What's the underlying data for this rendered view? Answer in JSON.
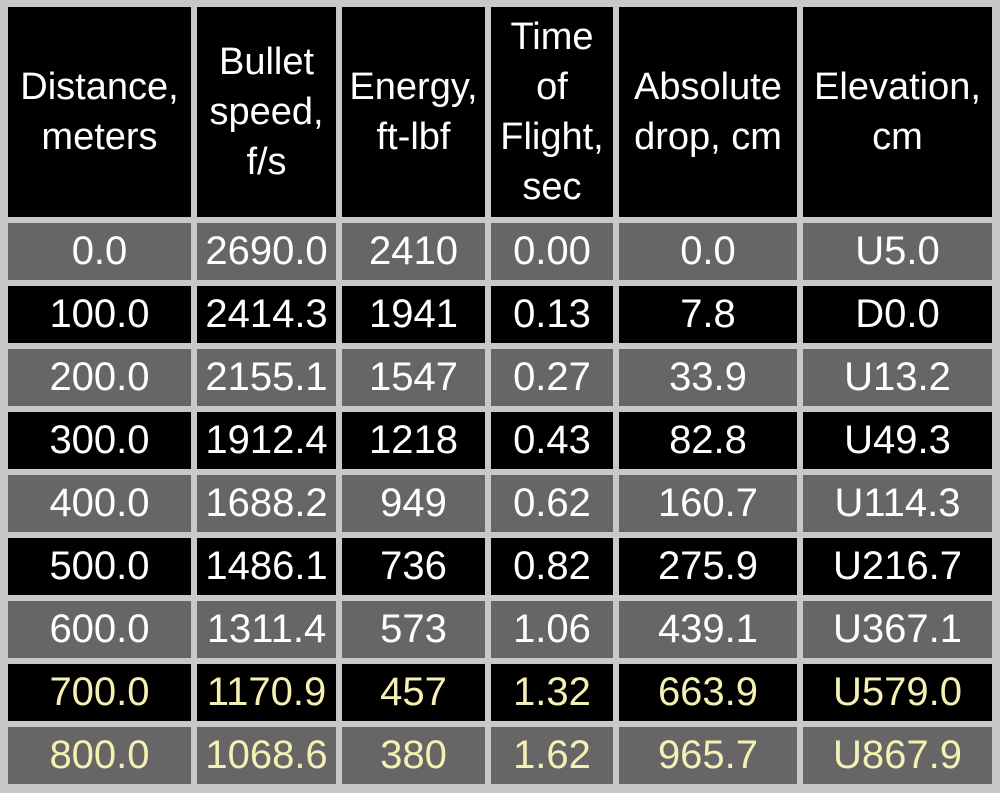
{
  "table": {
    "header": [
      [
        "Distance,",
        "meters"
      ],
      [
        "Bullet",
        "speed,",
        "f/s"
      ],
      [
        "Energy,",
        "ft-lbf"
      ],
      [
        "Time",
        "of",
        "Flight,",
        "sec"
      ],
      [
        "Absolute",
        "drop, cm"
      ],
      [
        "Elevation,",
        "cm"
      ]
    ],
    "rows": [
      [
        "0.0",
        "2690.0",
        "2410",
        "0.00",
        "0.0",
        "U5.0"
      ],
      [
        "100.0",
        "2414.3",
        "1941",
        "0.13",
        "7.8",
        "D0.0"
      ],
      [
        "200.0",
        "2155.1",
        "1547",
        "0.27",
        "33.9",
        "U13.2"
      ],
      [
        "300.0",
        "1912.4",
        "1218",
        "0.43",
        "82.8",
        "U49.3"
      ],
      [
        "400.0",
        "1688.2",
        "949",
        "0.62",
        "160.7",
        "U114.3"
      ],
      [
        "500.0",
        "1486.1",
        "736",
        "0.82",
        "275.9",
        "U216.7"
      ],
      [
        "600.0",
        "1311.4",
        "573",
        "1.06",
        "439.1",
        "U367.1"
      ],
      [
        "700.0",
        "1170.9",
        "457",
        "1.32",
        "663.9",
        "U579.0"
      ],
      [
        "800.0",
        "1068.6",
        "380",
        "1.62",
        "965.7",
        "U867.9"
      ]
    ]
  }
}
